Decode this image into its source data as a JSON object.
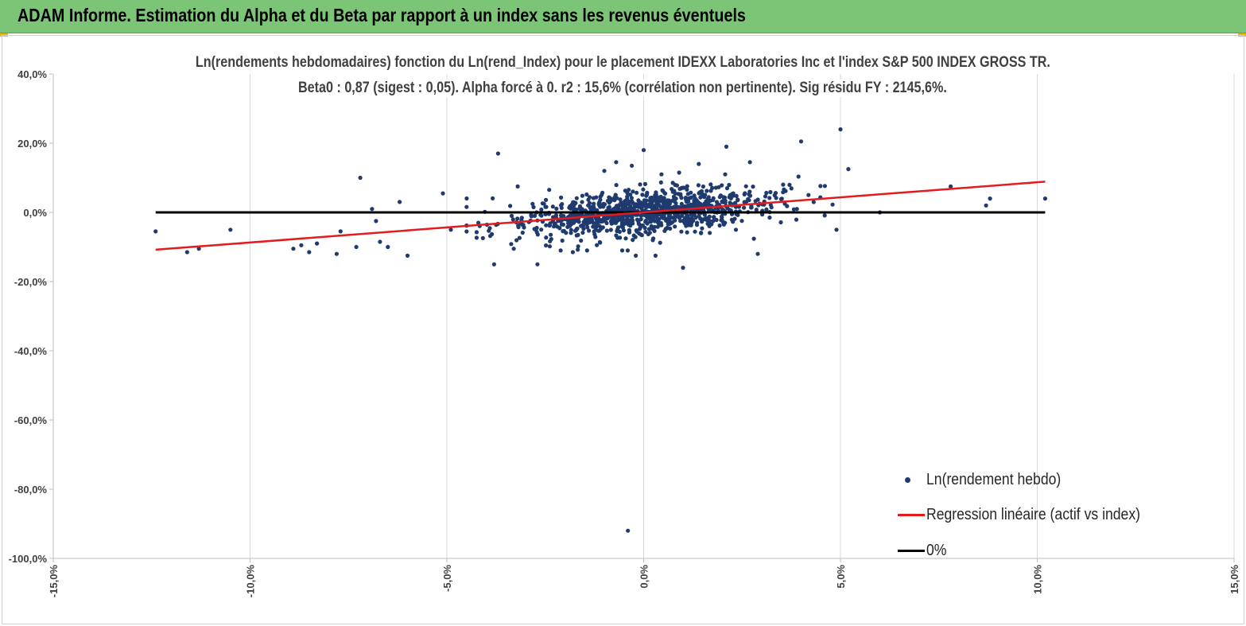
{
  "header": {
    "title": "ADAM Informe. Estimation du Alpha et du Beta par rapport à un index sans les revenus éventuels"
  },
  "colors": {
    "banner": "#7cc576",
    "points": "#1f3a6f",
    "regression": "#e41a1c",
    "zero_line": "#000000",
    "grid": "#d9d9d9"
  },
  "chart_data": {
    "type": "scatter",
    "title_line1": "Ln(rendements hebdomadaires) fonction du Ln(rend_Index) pour le placement IDEXX Laboratories Inc et l'index S&P 500 INDEX GROSS TR.",
    "title_line2": "Beta0 : 0,87 (sigest : 0,05). Alpha forcé à 0. r2 : 15,6% (corrélation non pertinente). Sig résidu FY : 2145,6%.",
    "xlim": [
      -15,
      15
    ],
    "ylim": [
      -100,
      40
    ],
    "x_ticks": [
      -15,
      -10,
      -5,
      0,
      5,
      10,
      15
    ],
    "y_ticks": [
      40,
      20,
      0,
      -20,
      -40,
      -60,
      -80,
      -100
    ],
    "x_tick_labels": [
      "-15,0%",
      "-10,0%",
      "-5,0%",
      "0,0%",
      "5,0%",
      "10,0%",
      "15,0%"
    ],
    "y_tick_labels": [
      "40,0%",
      "20,0%",
      "0,0%",
      "-20,0%",
      "-40,0%",
      "-60,0%",
      "-80,0%",
      "-100,0%"
    ],
    "grid": "vertical",
    "legend_position": "bottom-right",
    "series": [
      {
        "name": "Ln(rendement hebdo)",
        "kind": "scatter",
        "approx_point_count": 1100,
        "highlighted_points": [
          [
            -12.4,
            -5.5
          ],
          [
            -11.6,
            -11.5
          ],
          [
            -11.3,
            -10.5
          ],
          [
            -10.5,
            -5.0
          ],
          [
            -8.9,
            -10.5
          ],
          [
            -8.7,
            -9.5
          ],
          [
            -8.5,
            -11.5
          ],
          [
            -8.3,
            -9.0
          ],
          [
            -7.8,
            -12.0
          ],
          [
            -7.7,
            -5.5
          ],
          [
            -7.3,
            -10.0
          ],
          [
            -7.2,
            10.0
          ],
          [
            -6.9,
            1.0
          ],
          [
            -6.8,
            -2.5
          ],
          [
            -6.7,
            -8.5
          ],
          [
            -6.5,
            -10.0
          ],
          [
            -6.2,
            3.0
          ],
          [
            -6.0,
            -12.5
          ],
          [
            -5.1,
            5.5
          ],
          [
            -4.9,
            -5.0
          ],
          [
            -4.2,
            -3.0
          ],
          [
            -3.8,
            -15.0
          ],
          [
            -3.7,
            17.0
          ],
          [
            -3.2,
            7.5
          ],
          [
            -3.3,
            -10.5
          ],
          [
            -2.7,
            -15.0
          ],
          [
            -2.4,
            6.5
          ],
          [
            -1.8,
            -11.5
          ],
          [
            -1.0,
            12.0
          ],
          [
            -0.7,
            14.5
          ],
          [
            -0.3,
            13.5
          ],
          [
            -0.2,
            -12.5
          ],
          [
            -0.4,
            -92.0
          ],
          [
            0.0,
            18.0
          ],
          [
            0.3,
            -12.5
          ],
          [
            0.9,
            11.5
          ],
          [
            1.0,
            -16.0
          ],
          [
            1.4,
            14.0
          ],
          [
            2.1,
            19.0
          ],
          [
            2.7,
            14.5
          ],
          [
            2.9,
            -12.0
          ],
          [
            4.0,
            20.5
          ],
          [
            5.0,
            24.0
          ],
          [
            5.2,
            12.5
          ],
          [
            4.9,
            -5.0
          ],
          [
            6.0,
            0.0
          ],
          [
            7.8,
            7.5
          ],
          [
            8.7,
            2.0
          ],
          [
            8.8,
            4.0
          ],
          [
            10.2,
            4.0
          ]
        ]
      },
      {
        "name": "Regression linéaire (actif vs index)",
        "kind": "line",
        "slope": 0.87,
        "intercept": 0,
        "x_range": [
          -12.4,
          10.2
        ]
      },
      {
        "name": "0%",
        "kind": "line",
        "slope": 0,
        "intercept": 0,
        "x_range": [
          -12.4,
          10.2
        ]
      }
    ]
  }
}
